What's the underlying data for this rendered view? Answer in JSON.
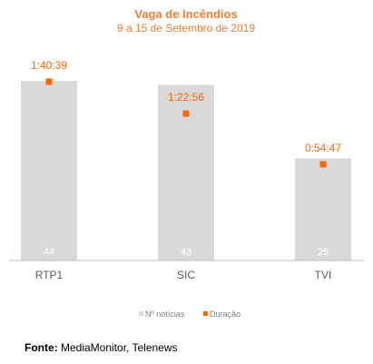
{
  "colors": {
    "accent": "#ff6600",
    "title": "#ed7d31",
    "bar": "#d9d9d9",
    "bar_label": "#ffffff",
    "axis": "#bfbfbf",
    "category_label": "#595959",
    "legend_text": "#7f7f7f"
  },
  "chart_data": {
    "type": "bar",
    "title": "Vaga de Incêndios",
    "subtitle": "9 a 15 de Setembro de 2019",
    "categories": [
      "RTP1",
      "SIC",
      "TVI"
    ],
    "series": [
      {
        "name": "Nº notícias",
        "kind": "bar",
        "values": [
          44,
          43,
          25
        ]
      },
      {
        "name": "Duração",
        "kind": "marker",
        "values_seconds": [
          6039,
          4976,
          3287
        ],
        "labels": [
          "1:40:39",
          "1:22:56",
          "0:54:47"
        ]
      }
    ],
    "legend_position": "bottom",
    "grid": false
  },
  "footer": {
    "label": "Fonte:",
    "text": " MediaMonitor, Telenews"
  }
}
